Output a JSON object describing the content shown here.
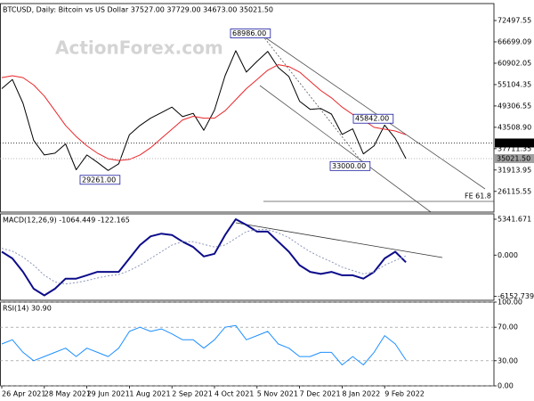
{
  "chart_data": [
    {
      "type": "line",
      "title": "BTCUSD, Daily:  Bitcoin vs US Dollar  37527.00 37729.00 34673.00 35021.50",
      "watermark": "ActionForex.com",
      "annotation": "FE 61.8",
      "categories": [
        "26 Apr 2021",
        null,
        null,
        null,
        "28 May 2021",
        null,
        null,
        null,
        "29 Jun 2021",
        null,
        null,
        null,
        "1 Aug 2021",
        null,
        null,
        null,
        "2 Sep 2021",
        null,
        null,
        null,
        "4 Oct 2021",
        null,
        null,
        null,
        "5 Nov 2021",
        null,
        null,
        null,
        "7 Dec 2021",
        null,
        null,
        null,
        "8 Jan 2022",
        null,
        null,
        null,
        "9 Feb 2022",
        null,
        null
      ],
      "series": [
        {
          "color": "#000000",
          "width": 1,
          "values": [
            54000,
            56500,
            50000,
            40000,
            36000,
            36500,
            39000,
            32000,
            36000,
            34000,
            31800,
            33600,
            41500,
            44000,
            46000,
            47500,
            49000,
            46400,
            47300,
            42700,
            48200,
            57500,
            64300,
            58500,
            61400,
            64100,
            59700,
            57300,
            50600,
            48400,
            48600,
            47100,
            41600,
            43100,
            36300,
            38500,
            44100,
            40500,
            35021.5
          ]
        },
        {
          "color": "#e8262a",
          "width": 1,
          "values": [
            57000,
            57500,
            57000,
            55000,
            52000,
            48000,
            44000,
            41000,
            38500,
            36500,
            35000,
            34500,
            34800,
            36000,
            38000,
            40500,
            43000,
            45500,
            46500,
            46000,
            46000,
            48000,
            51000,
            54000,
            56500,
            59000,
            60500,
            60000,
            58500,
            56000,
            53500,
            51500,
            49000,
            47000,
            45500,
            43500,
            43000,
            42500,
            41500
          ]
        }
      ],
      "ylim": [
        20500,
        77100
      ],
      "yticks": [
        72497.55,
        66699.09,
        60902.05,
        55104.35,
        49306.55,
        {
          "value": 43508.9,
          "label": "43508.90"
        },
        37711.35,
        31913.95,
        26115.55
      ],
      "levels": [
        {
          "value": 39252,
          "label": "39252.00",
          "color": "#000000"
        },
        {
          "value": 35021.5,
          "label": "35021.50",
          "color": "#a0a0a0"
        }
      ],
      "price_labels": [
        {
          "value": 68986,
          "label": "68986.00"
        },
        {
          "value": 45842,
          "label": "45842.00"
        },
        {
          "value": 33000,
          "label": "33000.00"
        },
        {
          "value": 29261,
          "label": "29261.00"
        }
      ]
    },
    {
      "type": "line",
      "title": "MACD(12,26,9) -1064.449 -122.165",
      "series": [
        {
          "color": "#0c0c8a",
          "width": 2,
          "values": [
            500,
            -500,
            -2500,
            -5000,
            -6000,
            -5000,
            -3500,
            -3500,
            -3000,
            -2500,
            -2500,
            -2500,
            -500,
            1500,
            2800,
            3200,
            3000,
            2000,
            1200,
            -200,
            200,
            3000,
            5341.671,
            4500,
            3500,
            3500,
            2000,
            500,
            -1500,
            -2500,
            -2800,
            -2500,
            -3000,
            -3000,
            -3500,
            -2500,
            -500,
            500,
            -1064.449
          ]
        },
        {
          "color": "#8d97b8",
          "width": 1,
          "dash": true,
          "values": [
            1000,
            600,
            -300,
            -1500,
            -3000,
            -4000,
            -4300,
            -4100,
            -3800,
            -3400,
            -3100,
            -2900,
            -2300,
            -1500,
            -500,
            500,
            1500,
            2000,
            2000,
            1600,
            1200,
            1500,
            2500,
            3500,
            3800,
            3800,
            3300,
            2600,
            1500,
            500,
            -300,
            -1000,
            -1800,
            -2300,
            -2800,
            -2500,
            -1500,
            -800,
            -122.165
          ]
        }
      ],
      "ylim": [
        -6730,
        6140
      ],
      "yticks": [
        5341.671,
        {
          "value": 0,
          "label": "0.000"
        },
        -6152.739
      ]
    },
    {
      "type": "line",
      "title": "RSI(14) 30.90",
      "series": [
        {
          "color": "#1e90ff",
          "width": 1,
          "values": [
            50,
            55,
            40,
            30,
            35,
            40,
            45,
            35,
            45,
            40,
            35,
            45,
            65,
            70,
            65,
            68,
            62,
            55,
            55,
            45,
            55,
            70,
            72,
            55,
            60,
            65,
            50,
            45,
            35,
            35,
            40,
            40,
            25,
            35,
            25,
            40,
            60,
            50,
            30.9
          ]
        }
      ],
      "ylim": [
        0,
        100
      ],
      "yticks": [
        {
          "value": 100,
          "label": "100.00"
        },
        {
          "value": 70,
          "label": "70.00"
        },
        {
          "value": 30,
          "label": "30.00"
        },
        {
          "value": 0,
          "label": "0.00"
        }
      ],
      "grid": true
    }
  ]
}
